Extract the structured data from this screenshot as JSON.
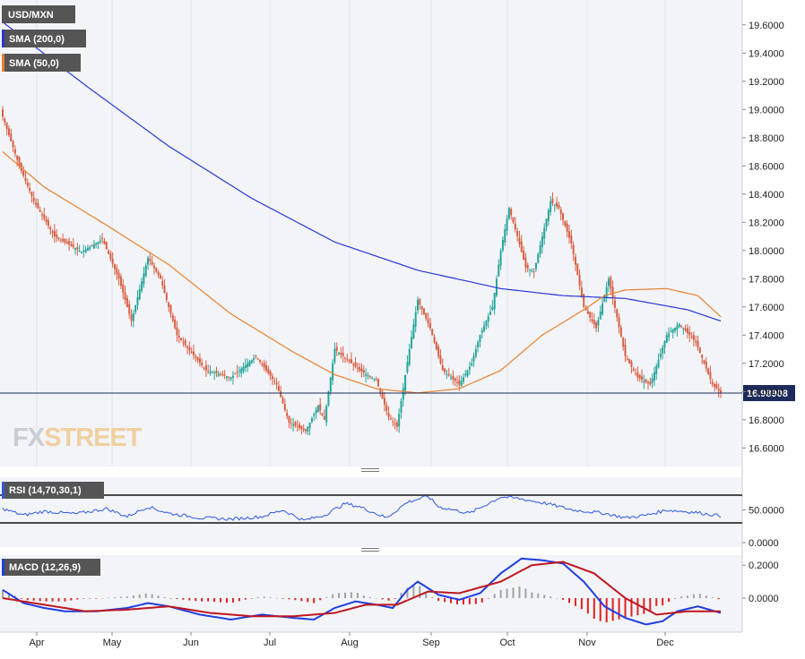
{
  "colors": {
    "background": "#f2f4f8",
    "up": "#26a69a",
    "down": "#d95f43",
    "sma200": "#2638d6",
    "sma50": "#e8802e",
    "price_line": "#1c2b5a",
    "rsi": "#2e57e0",
    "macd": "#1f3ee0",
    "signal": "#c0161e",
    "hist_pos": "#a3a3a3",
    "hist_neg": "#e02020",
    "label_box": "#555555"
  },
  "legend": {
    "symbol": "USD/MXN",
    "sma200": "SMA (200,0)",
    "sma50": "SMA (50,0)",
    "rsi": "RSI (14,70,30,1)",
    "macd": "MACD (12,26,9)"
  },
  "watermark": {
    "fx": "FX",
    "street": "STREET"
  },
  "price_tag": "16.98908",
  "chart_data": [
    {
      "type": "candlestick",
      "title": "USD/MXN",
      "x": [
        "Apr",
        "May",
        "Jun",
        "Jul",
        "Aug",
        "Sep",
        "Oct",
        "Nov",
        "Dec"
      ],
      "ylim": [
        16.5,
        19.75
      ],
      "y_ticks": [
        "19.6000",
        "19.4000",
        "19.2000",
        "19.0000",
        "18.8000",
        "18.6000",
        "18.4000",
        "18.2000",
        "18.0000",
        "17.8000",
        "17.6000",
        "17.4000",
        "17.2000",
        "17.0000",
        "16.8000",
        "16.6000"
      ],
      "last_price": 16.98908,
      "price_anchors": [
        [
          0,
          18.95
        ],
        [
          8,
          18.6
        ],
        [
          15,
          18.35
        ],
        [
          25,
          18.1
        ],
        [
          38,
          17.99
        ],
        [
          48,
          18.08
        ],
        [
          56,
          17.8
        ],
        [
          62,
          17.5
        ],
        [
          70,
          17.95
        ],
        [
          76,
          17.8
        ],
        [
          84,
          17.4
        ],
        [
          98,
          17.15
        ],
        [
          110,
          17.1
        ],
        [
          122,
          17.25
        ],
        [
          132,
          17.05
        ],
        [
          138,
          16.78
        ],
        [
          146,
          16.72
        ],
        [
          152,
          16.9
        ],
        [
          155,
          16.8
        ],
        [
          160,
          17.3
        ],
        [
          172,
          17.15
        ],
        [
          180,
          17.08
        ],
        [
          186,
          16.82
        ],
        [
          190,
          16.75
        ],
        [
          196,
          17.3
        ],
        [
          200,
          17.65
        ],
        [
          206,
          17.45
        ],
        [
          212,
          17.15
        ],
        [
          220,
          17.05
        ],
        [
          226,
          17.2
        ],
        [
          230,
          17.4
        ],
        [
          236,
          17.6
        ],
        [
          240,
          18.0
        ],
        [
          244,
          18.3
        ],
        [
          248,
          18.1
        ],
        [
          252,
          17.88
        ],
        [
          256,
          17.85
        ],
        [
          264,
          18.35
        ],
        [
          268,
          18.3
        ],
        [
          274,
          18.05
        ],
        [
          280,
          17.6
        ],
        [
          286,
          17.45
        ],
        [
          292,
          17.8
        ],
        [
          300,
          17.25
        ],
        [
          306,
          17.1
        ],
        [
          312,
          17.05
        ],
        [
          320,
          17.4
        ],
        [
          326,
          17.48
        ],
        [
          334,
          17.35
        ],
        [
          342,
          17.05
        ],
        [
          346,
          16.99
        ]
      ],
      "series": [
        {
          "name": "SMA (200,0)",
          "type": "line",
          "points": [
            [
              0,
              19.62
            ],
            [
              40,
              19.17
            ],
            [
              80,
              18.74
            ],
            [
              120,
              18.37
            ],
            [
              160,
              18.06
            ],
            [
              200,
              17.86
            ],
            [
              240,
              17.73
            ],
            [
              270,
              17.68
            ],
            [
              300,
              17.66
            ],
            [
              330,
              17.58
            ],
            [
              346,
              17.5
            ]
          ]
        },
        {
          "name": "SMA (50,0)",
          "type": "line",
          "points": [
            [
              0,
              18.7
            ],
            [
              20,
              18.45
            ],
            [
              50,
              18.18
            ],
            [
              80,
              17.9
            ],
            [
              110,
              17.55
            ],
            [
              140,
              17.28
            ],
            [
              160,
              17.12
            ],
            [
              180,
              17.02
            ],
            [
              200,
              16.99
            ],
            [
              220,
              17.02
            ],
            [
              240,
              17.15
            ],
            [
              260,
              17.4
            ],
            [
              280,
              17.58
            ],
            [
              290,
              17.68
            ],
            [
              300,
              17.72
            ],
            [
              320,
              17.73
            ],
            [
              335,
              17.68
            ],
            [
              346,
              17.53
            ]
          ]
        }
      ]
    },
    {
      "type": "line",
      "title": "RSI (14,70,30,1)",
      "y_ticks": [
        "50.0000",
        "0.0000"
      ],
      "ylim": [
        0,
        100
      ],
      "levels": [
        70,
        30
      ],
      "anchors": [
        [
          0,
          52
        ],
        [
          10,
          42
        ],
        [
          20,
          48
        ],
        [
          35,
          44
        ],
        [
          50,
          52
        ],
        [
          60,
          40
        ],
        [
          70,
          55
        ],
        [
          80,
          45
        ],
        [
          95,
          38
        ],
        [
          110,
          36
        ],
        [
          125,
          40
        ],
        [
          135,
          50
        ],
        [
          145,
          34
        ],
        [
          155,
          42
        ],
        [
          165,
          60
        ],
        [
          172,
          55
        ],
        [
          185,
          38
        ],
        [
          195,
          62
        ],
        [
          205,
          71
        ],
        [
          210,
          55
        ],
        [
          225,
          45
        ],
        [
          240,
          70
        ],
        [
          248,
          68
        ],
        [
          262,
          60
        ],
        [
          275,
          50
        ],
        [
          290,
          45
        ],
        [
          300,
          38
        ],
        [
          310,
          42
        ],
        [
          320,
          50
        ],
        [
          335,
          46
        ],
        [
          346,
          41
        ]
      ]
    },
    {
      "type": "line",
      "title": "MACD (12,26,9)",
      "y_ticks": [
        "0.2000",
        "0.0000"
      ],
      "ylim": [
        -0.21,
        0.27
      ],
      "macd": [
        [
          0,
          0.05
        ],
        [
          10,
          -0.03
        ],
        [
          20,
          -0.06
        ],
        [
          30,
          -0.08
        ],
        [
          45,
          -0.08
        ],
        [
          60,
          -0.06
        ],
        [
          70,
          -0.03
        ],
        [
          80,
          -0.05
        ],
        [
          95,
          -0.1
        ],
        [
          110,
          -0.13
        ],
        [
          125,
          -0.1
        ],
        [
          140,
          -0.12
        ],
        [
          150,
          -0.13
        ],
        [
          160,
          -0.06
        ],
        [
          170,
          -0.02
        ],
        [
          180,
          -0.04
        ],
        [
          188,
          -0.06
        ],
        [
          195,
          0.05
        ],
        [
          200,
          0.1
        ],
        [
          210,
          0.02
        ],
        [
          220,
          -0.01
        ],
        [
          230,
          0.03
        ],
        [
          240,
          0.15
        ],
        [
          250,
          0.24
        ],
        [
          260,
          0.23
        ],
        [
          270,
          0.21
        ],
        [
          280,
          0.1
        ],
        [
          290,
          -0.05
        ],
        [
          300,
          -0.12
        ],
        [
          310,
          -0.16
        ],
        [
          318,
          -0.14
        ],
        [
          325,
          -0.08
        ],
        [
          335,
          -0.05
        ],
        [
          346,
          -0.09
        ]
      ],
      "signal": [
        [
          0,
          0.0
        ],
        [
          20,
          -0.04
        ],
        [
          40,
          -0.08
        ],
        [
          60,
          -0.07
        ],
        [
          80,
          -0.05
        ],
        [
          100,
          -0.09
        ],
        [
          120,
          -0.11
        ],
        [
          140,
          -0.11
        ],
        [
          160,
          -0.09
        ],
        [
          175,
          -0.04
        ],
        [
          190,
          -0.04
        ],
        [
          205,
          0.04
        ],
        [
          220,
          0.03
        ],
        [
          240,
          0.1
        ],
        [
          255,
          0.2
        ],
        [
          270,
          0.22
        ],
        [
          285,
          0.15
        ],
        [
          300,
          0.0
        ],
        [
          315,
          -0.1
        ],
        [
          330,
          -0.08
        ],
        [
          346,
          -0.08
        ]
      ]
    }
  ]
}
